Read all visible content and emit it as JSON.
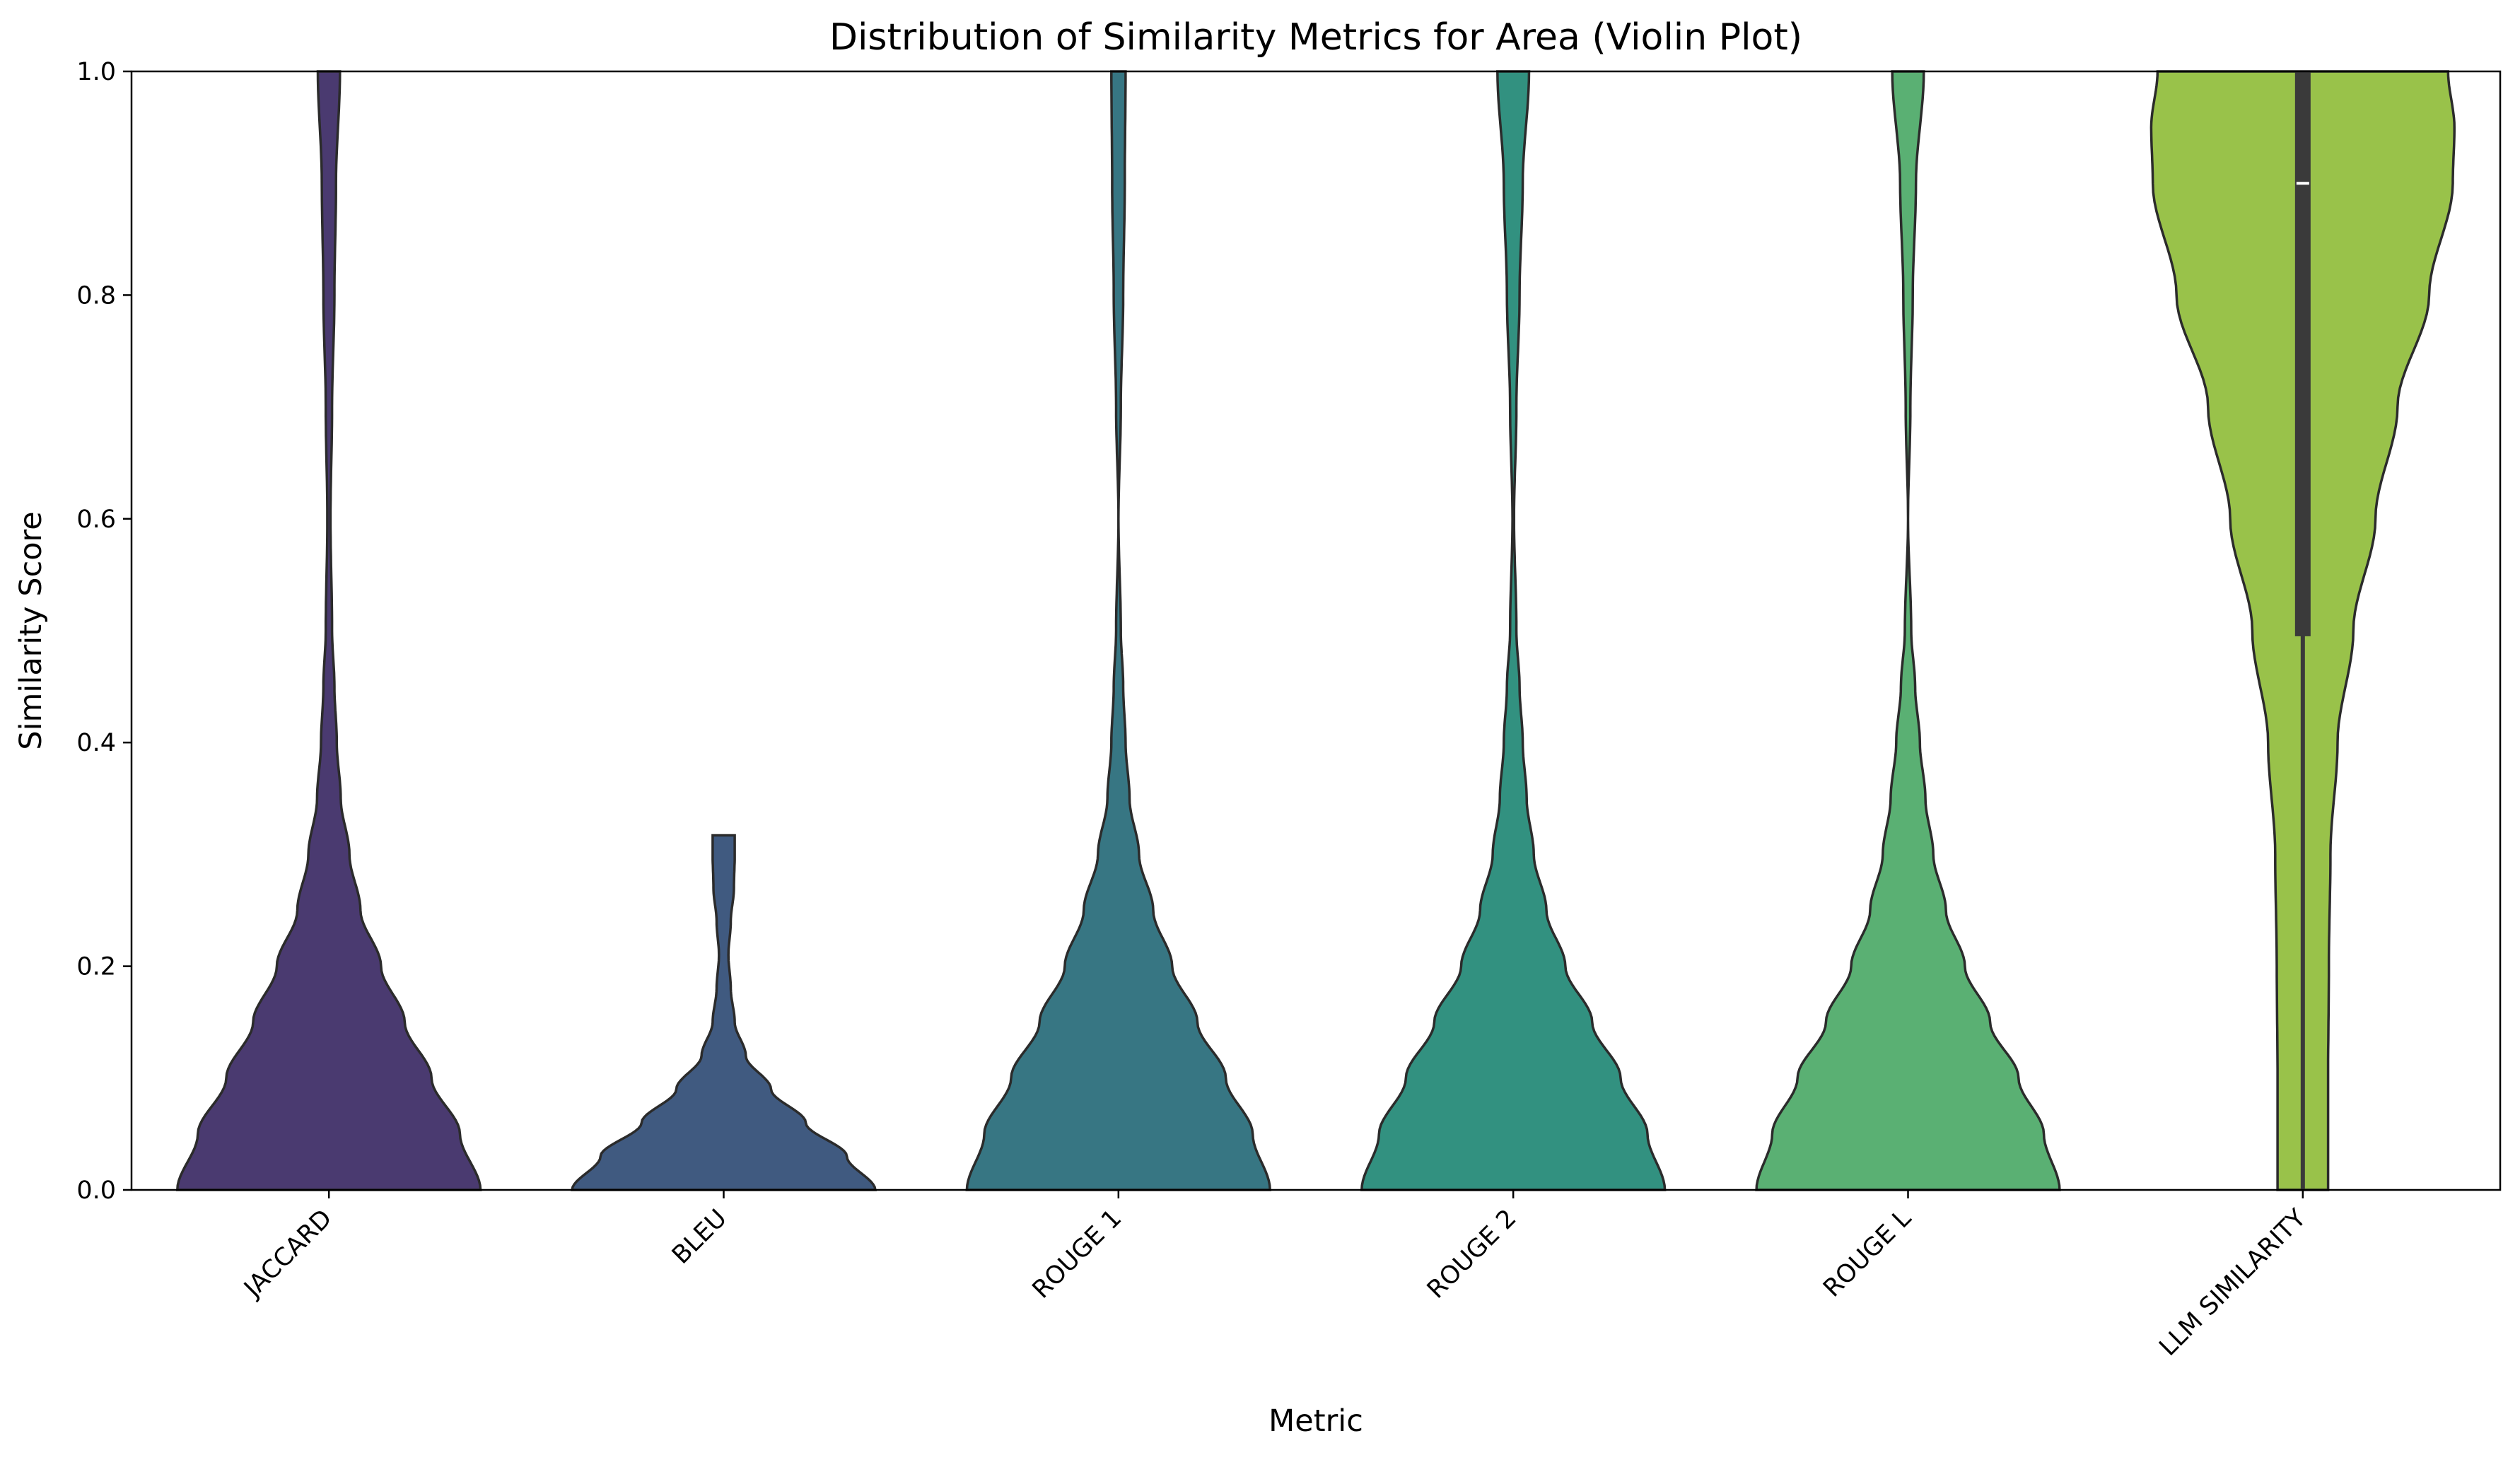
{
  "chart_data": {
    "type": "violin",
    "title": "Distribution of Similarity Metrics for Area (Violin Plot)",
    "xlabel": "Metric",
    "ylabel": "Similarity Score",
    "ylim": [
      0,
      1.0
    ],
    "yticks": [
      "0.0",
      "0.2",
      "0.4",
      "0.6",
      "0.8",
      "1.0"
    ],
    "grid": false,
    "legend": "none",
    "categories": [
      "JACCARD",
      "BLEU",
      "ROUGE 1",
      "ROUGE 2",
      "ROUGE L",
      "LLM SIMILARITY"
    ],
    "series": [
      {
        "category": "JACCARD",
        "color": "#4a3a70",
        "ymin": 0.0,
        "ymax": 1.0,
        "density": [
          [
            0.0,
            0.96
          ],
          [
            0.05,
            0.83
          ],
          [
            0.1,
            0.65
          ],
          [
            0.15,
            0.48
          ],
          [
            0.2,
            0.33
          ],
          [
            0.25,
            0.2
          ],
          [
            0.3,
            0.13
          ],
          [
            0.35,
            0.075
          ],
          [
            0.4,
            0.05
          ],
          [
            0.45,
            0.035
          ],
          [
            0.5,
            0.02
          ],
          [
            0.6,
            0.01
          ],
          [
            0.7,
            0.02
          ],
          [
            0.8,
            0.035
          ],
          [
            0.9,
            0.045
          ],
          [
            1.0,
            0.07
          ]
        ]
      },
      {
        "category": "BLEU",
        "color": "#405a80",
        "ymin": 0.0,
        "ymax": 0.317,
        "density": [
          [
            0.0,
            0.96
          ],
          [
            0.03,
            0.78
          ],
          [
            0.06,
            0.52
          ],
          [
            0.09,
            0.3
          ],
          [
            0.12,
            0.14
          ],
          [
            0.15,
            0.07
          ],
          [
            0.18,
            0.045
          ],
          [
            0.21,
            0.03
          ],
          [
            0.24,
            0.045
          ],
          [
            0.27,
            0.065
          ],
          [
            0.3,
            0.07
          ],
          [
            0.317,
            0.07
          ]
        ]
      },
      {
        "category": "ROUGE 1",
        "color": "#377683",
        "ymin": 0.0,
        "ymax": 1.0,
        "density": [
          [
            0.0,
            0.96
          ],
          [
            0.05,
            0.85
          ],
          [
            0.1,
            0.68
          ],
          [
            0.15,
            0.5
          ],
          [
            0.2,
            0.34
          ],
          [
            0.25,
            0.22
          ],
          [
            0.3,
            0.13
          ],
          [
            0.35,
            0.07
          ],
          [
            0.4,
            0.045
          ],
          [
            0.45,
            0.03
          ],
          [
            0.5,
            0.015
          ],
          [
            0.6,
            0.0
          ],
          [
            0.7,
            0.015
          ],
          [
            0.8,
            0.03
          ],
          [
            0.9,
            0.04
          ],
          [
            1.0,
            0.045
          ]
        ]
      },
      {
        "category": "ROUGE 2",
        "color": "#329180",
        "ymin": 0.0,
        "ymax": 1.0,
        "density": [
          [
            0.0,
            0.96
          ],
          [
            0.05,
            0.85
          ],
          [
            0.1,
            0.68
          ],
          [
            0.15,
            0.5
          ],
          [
            0.2,
            0.33
          ],
          [
            0.25,
            0.21
          ],
          [
            0.3,
            0.13
          ],
          [
            0.35,
            0.085
          ],
          [
            0.4,
            0.06
          ],
          [
            0.45,
            0.04
          ],
          [
            0.5,
            0.02
          ],
          [
            0.6,
            0.005
          ],
          [
            0.7,
            0.02
          ],
          [
            0.8,
            0.04
          ],
          [
            0.9,
            0.06
          ],
          [
            1.0,
            0.1
          ]
        ]
      },
      {
        "category": "ROUGE L",
        "color": "#5ab073",
        "ymin": 0.0,
        "ymax": 1.0,
        "density": [
          [
            0.0,
            0.96
          ],
          [
            0.05,
            0.86
          ],
          [
            0.1,
            0.7
          ],
          [
            0.15,
            0.52
          ],
          [
            0.2,
            0.36
          ],
          [
            0.25,
            0.24
          ],
          [
            0.3,
            0.16
          ],
          [
            0.35,
            0.11
          ],
          [
            0.4,
            0.075
          ],
          [
            0.45,
            0.045
          ],
          [
            0.5,
            0.02
          ],
          [
            0.6,
            0.0
          ],
          [
            0.7,
            0.015
          ],
          [
            0.8,
            0.03
          ],
          [
            0.9,
            0.05
          ],
          [
            1.0,
            0.1
          ]
        ]
      },
      {
        "category": "LLM SIMILARITY",
        "color": "#99c24a",
        "ymin": 0.0,
        "ymax": 1.0,
        "density": [
          [
            0.0,
            0.16
          ],
          [
            0.1,
            0.16
          ],
          [
            0.2,
            0.165
          ],
          [
            0.3,
            0.175
          ],
          [
            0.4,
            0.22
          ],
          [
            0.5,
            0.32
          ],
          [
            0.6,
            0.46
          ],
          [
            0.7,
            0.6
          ],
          [
            0.8,
            0.8
          ],
          [
            0.9,
            0.95
          ],
          [
            0.95,
            0.96
          ],
          [
            1.0,
            0.92
          ]
        ],
        "box": {
          "q1": 0.495,
          "median": 0.9,
          "q3": 1.0,
          "whisker_low": 0.0,
          "whisker_high": 1.0
        }
      }
    ]
  }
}
